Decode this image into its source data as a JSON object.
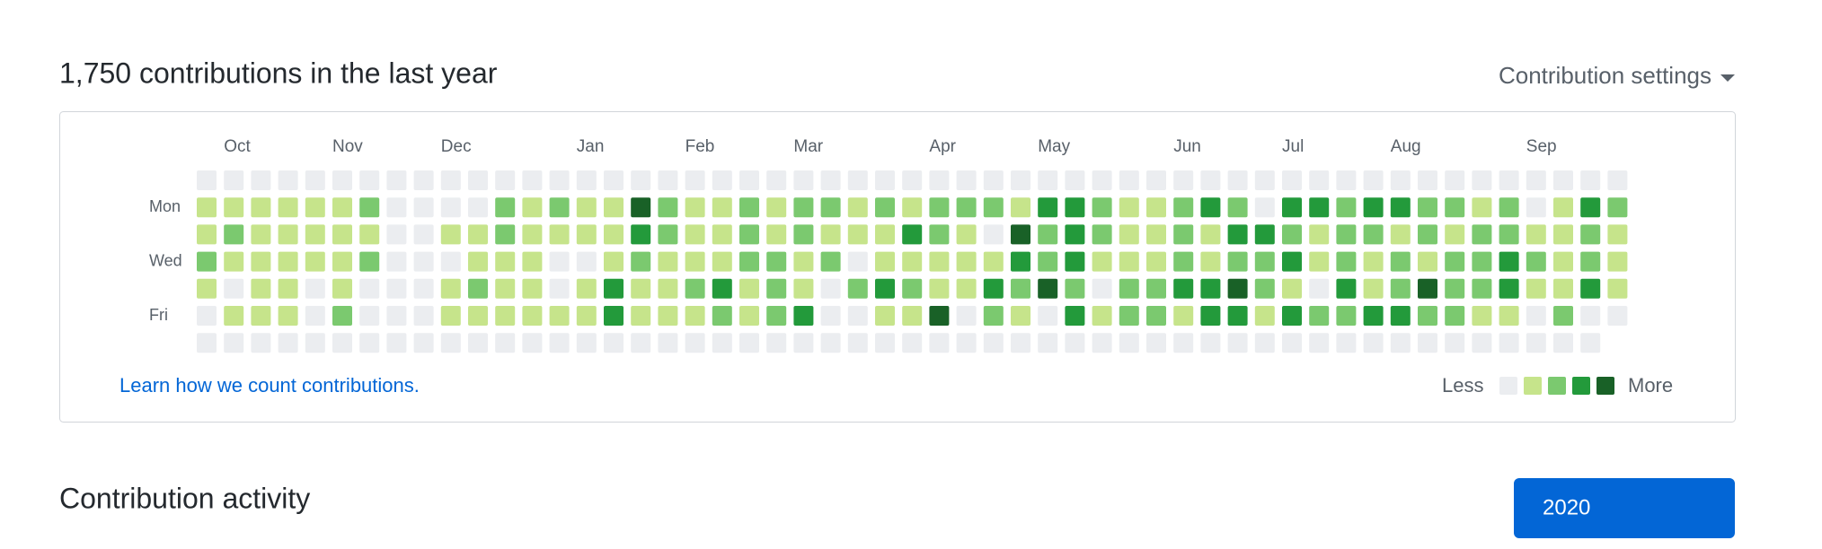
{
  "header": {
    "title": "1,750 contributions in the last year",
    "settings": "Contribution settings"
  },
  "calendar": {
    "months": [
      null,
      "Oct",
      null,
      null,
      null,
      "Nov",
      null,
      null,
      null,
      "Dec",
      null,
      null,
      null,
      null,
      "Jan",
      null,
      null,
      null,
      "Feb",
      null,
      null,
      null,
      "Mar",
      null,
      null,
      null,
      null,
      "Apr",
      null,
      null,
      null,
      "May",
      null,
      null,
      null,
      null,
      "Jun",
      null,
      null,
      null,
      "Jul",
      null,
      null,
      null,
      "Aug",
      null,
      null,
      null,
      null,
      "Sep",
      null,
      null,
      null
    ],
    "days": [
      null,
      "Mon",
      null,
      "Wed",
      null,
      "Fri",
      null
    ],
    "colors": [
      "#ebedf0",
      "#c6e48b",
      "#7bc96f",
      "#239a3b",
      "#196127"
    ],
    "levels": [
      [
        0,
        0,
        0,
        0,
        0,
        0,
        0,
        0,
        0,
        0,
        0,
        0,
        0,
        0,
        0,
        0,
        0,
        0,
        0,
        0,
        0,
        0,
        0,
        0,
        0,
        0,
        0,
        0,
        0,
        0,
        0,
        0,
        0,
        0,
        0,
        0,
        0,
        0,
        0,
        0,
        0,
        0,
        0,
        0,
        0,
        0,
        0,
        0,
        0,
        0,
        0,
        0,
        0
      ],
      [
        1,
        1,
        1,
        1,
        1,
        1,
        2,
        0,
        0,
        0,
        0,
        2,
        1,
        2,
        1,
        1,
        4,
        2,
        1,
        1,
        2,
        1,
        2,
        2,
        1,
        2,
        1,
        2,
        2,
        2,
        1,
        3,
        3,
        2,
        1,
        1,
        2,
        3,
        2,
        0,
        3,
        3,
        2,
        3,
        3,
        2,
        2,
        1,
        2,
        0,
        1,
        3,
        2
      ],
      [
        1,
        2,
        1,
        1,
        1,
        1,
        1,
        0,
        0,
        1,
        1,
        2,
        1,
        1,
        1,
        1,
        3,
        2,
        1,
        1,
        2,
        1,
        2,
        1,
        1,
        1,
        3,
        2,
        1,
        0,
        4,
        2,
        3,
        2,
        1,
        1,
        2,
        1,
        3,
        3,
        2,
        1,
        2,
        2,
        1,
        2,
        1,
        2,
        2,
        1,
        1,
        2,
        1
      ],
      [
        2,
        1,
        1,
        1,
        1,
        1,
        2,
        0,
        0,
        0,
        1,
        1,
        1,
        0,
        0,
        1,
        2,
        1,
        1,
        1,
        2,
        2,
        1,
        2,
        0,
        1,
        1,
        1,
        1,
        1,
        3,
        2,
        3,
        1,
        1,
        1,
        2,
        1,
        2,
        2,
        3,
        1,
        2,
        1,
        2,
        1,
        2,
        2,
        3,
        2,
        1,
        2,
        1
      ],
      [
        1,
        0,
        1,
        1,
        0,
        1,
        0,
        0,
        0,
        1,
        2,
        1,
        1,
        0,
        1,
        3,
        1,
        1,
        2,
        3,
        1,
        2,
        1,
        0,
        2,
        3,
        2,
        1,
        1,
        3,
        2,
        4,
        2,
        0,
        2,
        2,
        3,
        3,
        4,
        2,
        1,
        0,
        3,
        1,
        2,
        4,
        2,
        2,
        3,
        1,
        1,
        3,
        1
      ],
      [
        0,
        1,
        1,
        1,
        0,
        2,
        0,
        0,
        0,
        1,
        1,
        1,
        1,
        1,
        1,
        3,
        1,
        1,
        1,
        2,
        1,
        2,
        3,
        0,
        0,
        1,
        1,
        4,
        0,
        2,
        1,
        0,
        3,
        1,
        2,
        2,
        1,
        3,
        3,
        1,
        3,
        2,
        2,
        3,
        3,
        2,
        2,
        1,
        1,
        0,
        2,
        0,
        0
      ],
      [
        0,
        0,
        0,
        0,
        0,
        0,
        0,
        0,
        0,
        0,
        0,
        0,
        0,
        0,
        0,
        0,
        0,
        0,
        0,
        0,
        0,
        0,
        0,
        0,
        0,
        0,
        0,
        0,
        0,
        0,
        0,
        0,
        0,
        0,
        0,
        0,
        0,
        0,
        0,
        0,
        0,
        0,
        0,
        0,
        0,
        0,
        0,
        0,
        0,
        0,
        0,
        0,
        null
      ]
    ]
  },
  "footer": {
    "link": "Learn how we count contributions.",
    "less": "Less",
    "more": "More"
  },
  "activity": {
    "title": "Contribution activity",
    "year": "2020"
  }
}
